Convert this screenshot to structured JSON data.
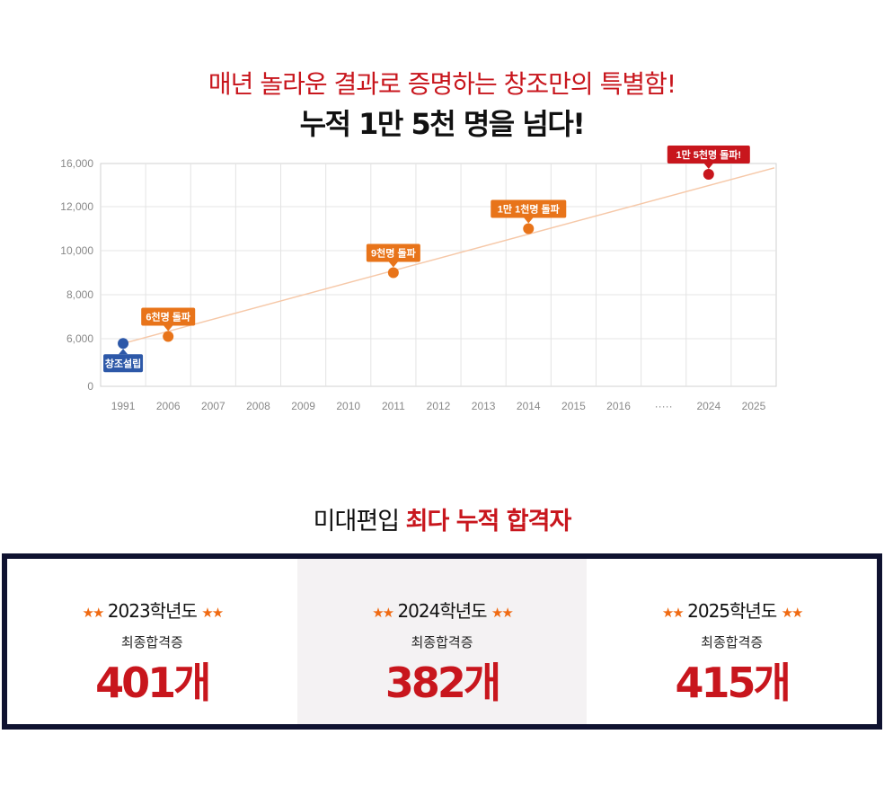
{
  "hero": {
    "subtitle": "매년 놀라운 결과로 증명하는 창조만의 특별함!",
    "title": "누적 1만 5천 명을 넘다!"
  },
  "chart_data": {
    "type": "line",
    "categories": [
      "1991",
      "2006",
      "2007",
      "2008",
      "2009",
      "2010",
      "2011",
      "2012",
      "2013",
      "2014",
      "2015",
      "2016",
      "·····",
      "2024",
      "2025"
    ],
    "y_ticks": [
      "0",
      "6,000",
      "8,000",
      "10,000",
      "12,000",
      "16,000"
    ],
    "ylim": [
      0,
      16000
    ],
    "grid": true,
    "trend": {
      "from": {
        "x": "1991",
        "y": 5400
      },
      "to": {
        "x": "2025",
        "y": 15600
      }
    },
    "points": [
      {
        "x": "1991",
        "y": 5400,
        "label": "창조설립",
        "color": "#2d58a8",
        "callout": "below"
      },
      {
        "x": "2006",
        "y": 6100,
        "label": "6천명 돌파",
        "color": "#e8741a",
        "callout": "above"
      },
      {
        "x": "2011",
        "y": 9000,
        "label": "9천명 돌파",
        "color": "#e8741a",
        "callout": "above"
      },
      {
        "x": "2014",
        "y": 11000,
        "label": "1만 1천명 돌파",
        "color": "#e8741a",
        "callout": "above"
      },
      {
        "x": "2024",
        "y": 15000,
        "label": "1만 5천명 돌파!",
        "color": "#c8161d",
        "callout": "above"
      }
    ],
    "colors": {
      "grid": "#e4e4e4",
      "axis": "#d0d0d0",
      "tick": "#888888",
      "trend": "#f6c8a8"
    }
  },
  "section": {
    "title_plain": "미대편입 ",
    "title_accent": "최다 누적 합격자"
  },
  "stats": [
    {
      "stars_left": "★★",
      "year": "2023학년도",
      "stars_right": "★★",
      "label": "최종합격증",
      "value": "401개"
    },
    {
      "stars_left": "★★",
      "year": "2024학년도",
      "stars_right": "★★",
      "label": "최종합격증",
      "value": "382개"
    },
    {
      "stars_left": "★★",
      "year": "2025학년도",
      "stars_right": "★★",
      "label": "최종합격증",
      "value": "415개"
    }
  ]
}
